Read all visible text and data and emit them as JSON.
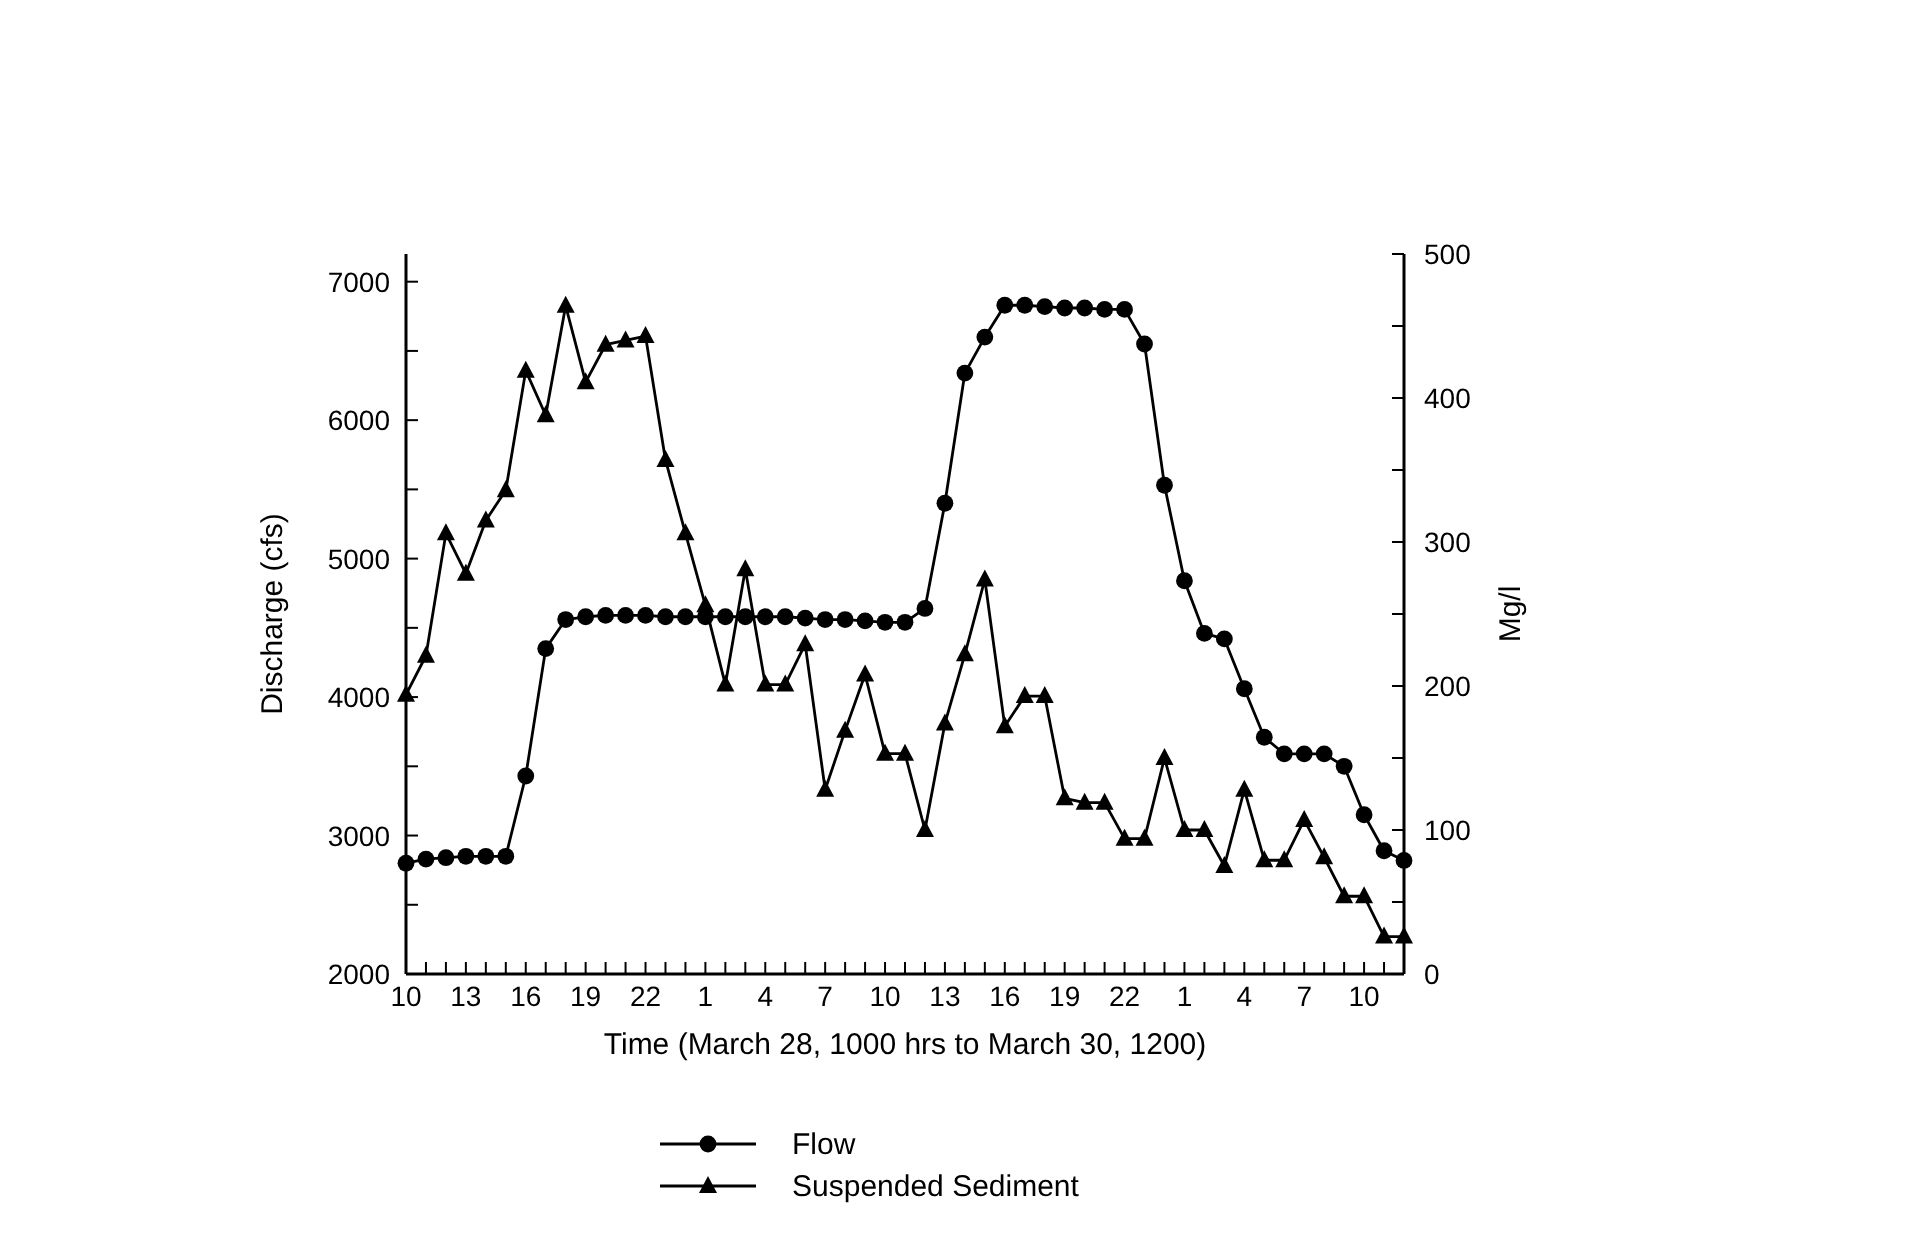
{
  "chart_data": {
    "type": "line",
    "xlabel": "Time (March 28, 1000 hrs to March 30, 1200)",
    "ylabel": "Discharge (cfs)",
    "y2label": "Mg/l",
    "categories": [
      "10",
      null,
      null,
      "13",
      null,
      null,
      "16",
      null,
      null,
      "19",
      null,
      null,
      "22",
      null,
      null,
      "1",
      null,
      null,
      "4",
      null,
      null,
      "7",
      null,
      null,
      "10",
      null,
      null,
      "13",
      null,
      null,
      "16",
      null,
      null,
      "19",
      null,
      null,
      "22",
      null,
      null,
      "1",
      null,
      null,
      "4",
      null,
      null,
      "7",
      null,
      null,
      "10",
      null,
      null
    ],
    "ylim": [
      2000,
      7200
    ],
    "yticks": [
      2000,
      {
        "value": 2500,
        "label": null
      },
      3000,
      {
        "value": 3500,
        "label": null
      },
      4000,
      {
        "value": 4500,
        "label": null
      },
      5000,
      {
        "value": 5500,
        "label": null
      },
      6000,
      {
        "value": 6500,
        "label": null
      },
      7000
    ],
    "y2lim": [
      0,
      500
    ],
    "y2ticks": [
      0,
      {
        "value": 50,
        "label": null
      },
      100,
      {
        "value": 150,
        "label": null
      },
      200,
      {
        "value": 250,
        "label": null
      },
      300,
      {
        "value": 350,
        "label": null
      },
      400,
      {
        "value": 450,
        "label": null
      },
      500
    ],
    "grid": false,
    "legend": "bottom",
    "line_style": "solid",
    "series": [
      {
        "name": "Flow",
        "color": "#000000",
        "marker": "circle",
        "values": [
          2800,
          2830,
          2840,
          2850,
          2850,
          2850,
          3430,
          4350,
          4560,
          4580,
          4590,
          4590,
          4590,
          4580,
          4580,
          4580,
          4580,
          4580,
          4580,
          4580,
          4570,
          4560,
          4560,
          4550,
          4540,
          4540,
          4640,
          5400,
          6340,
          6600,
          6830,
          6830,
          6820,
          6810,
          6810,
          6800,
          6800,
          6550,
          5530,
          4840,
          4460,
          4420,
          4060,
          3710,
          3590,
          3590,
          3590,
          3500,
          3150,
          2890,
          2820
        ]
      },
      {
        "name": "Suspended Sediment",
        "color": "#000000",
        "marker": "triangle",
        "axis": "y2",
        "values": [
          194,
          221,
          306,
          278,
          315,
          336,
          419,
          388,
          464,
          411,
          437,
          440,
          443,
          357,
          306,
          256,
          201,
          281,
          201,
          201,
          229,
          128,
          169,
          208,
          153,
          153,
          100,
          174,
          222,
          274,
          172,
          193,
          193,
          122,
          119,
          119,
          94,
          94,
          150,
          100,
          100,
          75,
          128,
          79,
          79,
          107,
          81,
          54,
          54,
          26,
          26
        ]
      }
    ]
  }
}
